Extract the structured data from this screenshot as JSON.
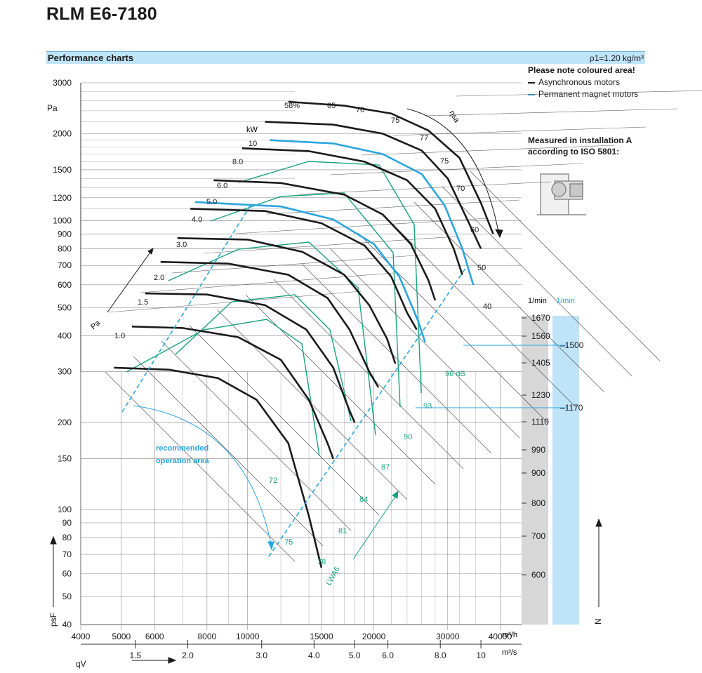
{
  "title": "RLM E6-7180",
  "section_title": "Performance charts",
  "density_label": "ρ1=1.20 kg/m³",
  "notes": {
    "coloured": "Please note coloured area!",
    "async": "Asynchronous motors",
    "pm": "Permanent magnet motors",
    "measured_1": "Measured in installation A",
    "measured_2": "according to ISO 5801:"
  },
  "colors": {
    "async": "#1a1a1a",
    "pm": "#2aa5e0",
    "efficiency": "#19a37d",
    "band": "#bfe3f7",
    "speed_bar": "#d7d7d7"
  },
  "recommended_label_1": "recommended",
  "recommended_label_2": "operation area",
  "chart_data": {
    "type": "line",
    "y_axis": {
      "label": "psF",
      "unit": "Pa",
      "scale": "log",
      "range": [
        40,
        3000
      ],
      "ticks": [
        "40",
        "50",
        "60",
        "70",
        "80",
        "90",
        "100",
        "150",
        "200",
        "300",
        "400",
        "500",
        "600",
        "700",
        "800",
        "900",
        "1000",
        "1200",
        "1500",
        "2000",
        "3000"
      ]
    },
    "x_axis_m3h": {
      "scale": "log",
      "unit": "m³/h",
      "range": [
        4000,
        45000
      ],
      "ticks": [
        "4000",
        "5000",
        "6000",
        "8000",
        "10000",
        "15000",
        "20000",
        "30000",
        "40000"
      ]
    },
    "x_axis_m3s": {
      "label": "qV",
      "unit": "m³/s",
      "ticks": [
        "1.5",
        "2.0",
        "3.0",
        "4.0",
        "5.0",
        "6.0",
        "8.0",
        "10"
      ]
    },
    "power_kw": {
      "unit": "kW",
      "values": [
        "10",
        "8.0",
        "6.0",
        "5.0",
        "4.0",
        "3.0",
        "2.0",
        "1.5",
        "1.0"
      ]
    },
    "efficiency_pct": {
      "label": "ηsa",
      "values": [
        "58%",
        "65",
        "70",
        "75",
        "77",
        "75",
        "70",
        "60",
        "50",
        "40"
      ]
    },
    "sound_dB": [
      "96 dB",
      "93",
      "90",
      "87",
      "84",
      "81",
      "78",
      "75",
      "72"
    ],
    "sound_label": "LWA6",
    "pa_label": "Pa",
    "speed_async_unit": "1/min",
    "speed_async": [
      "1670",
      "1560",
      "1405",
      "1230",
      "1110",
      "990",
      "900",
      "800",
      "700",
      "600"
    ],
    "speed_pm_unit": "1/min",
    "speed_pm": [
      "1500",
      "1170"
    ],
    "n_label": "N",
    "async_curves": [
      {
        "rpm": 1670,
        "points": [
          [
            12500,
            2580
          ],
          [
            17000,
            2500
          ],
          [
            22000,
            2350
          ],
          [
            27000,
            2050
          ],
          [
            32000,
            1650
          ],
          [
            36000,
            1150
          ],
          [
            38500,
            900
          ]
        ]
      },
      {
        "rpm": 1560,
        "points": [
          [
            11000,
            2200
          ],
          [
            16000,
            2150
          ],
          [
            21000,
            2000
          ],
          [
            26000,
            1750
          ],
          [
            30000,
            1400
          ],
          [
            33500,
            1000
          ],
          [
            36000,
            800
          ]
        ]
      },
      {
        "rpm": 1405,
        "points": [
          [
            9700,
            1780
          ],
          [
            14000,
            1740
          ],
          [
            19000,
            1600
          ],
          [
            24000,
            1380
          ],
          [
            28000,
            1100
          ],
          [
            31000,
            800
          ],
          [
            32500,
            650
          ]
        ]
      },
      {
        "rpm": 1230,
        "points": [
          [
            8300,
            1380
          ],
          [
            12000,
            1350
          ],
          [
            17000,
            1230
          ],
          [
            21000,
            1050
          ],
          [
            24500,
            830
          ],
          [
            27000,
            620
          ],
          [
            28000,
            530
          ]
        ]
      },
      {
        "rpm": 1110,
        "points": [
          [
            7300,
            1100
          ],
          [
            11000,
            1080
          ],
          [
            15000,
            980
          ],
          [
            19000,
            820
          ],
          [
            22000,
            640
          ],
          [
            24000,
            480
          ],
          [
            25300,
            420
          ]
        ]
      },
      {
        "rpm": 990,
        "points": [
          [
            6800,
            870
          ],
          [
            10000,
            860
          ],
          [
            13500,
            780
          ],
          [
            17000,
            650
          ],
          [
            19500,
            510
          ],
          [
            21500,
            390
          ],
          [
            22500,
            320
          ]
        ]
      },
      {
        "rpm": 900,
        "points": [
          [
            6200,
            720
          ],
          [
            9000,
            710
          ],
          [
            12500,
            650
          ],
          [
            15500,
            540
          ],
          [
            17500,
            420
          ],
          [
            19500,
            300
          ],
          [
            20500,
            265
          ]
        ]
      },
      {
        "rpm": 800,
        "points": [
          [
            5700,
            560
          ],
          [
            8000,
            555
          ],
          [
            11000,
            510
          ],
          [
            13800,
            420
          ],
          [
            16000,
            310
          ],
          [
            17500,
            220
          ],
          [
            18000,
            200
          ]
        ]
      },
      {
        "rpm": 700,
        "points": [
          [
            5300,
            430
          ],
          [
            7000,
            425
          ],
          [
            9500,
            395
          ],
          [
            12000,
            330
          ],
          [
            14000,
            240
          ],
          [
            15500,
            170
          ],
          [
            16000,
            150
          ]
        ]
      },
      {
        "rpm": 600,
        "points": [
          [
            4800,
            310
          ],
          [
            6500,
            305
          ],
          [
            8500,
            285
          ],
          [
            10500,
            240
          ],
          [
            12500,
            170
          ],
          [
            14000,
            95
          ],
          [
            15000,
            63
          ]
        ]
      }
    ],
    "pm_curves": [
      {
        "rpm": 1500,
        "points": [
          [
            11300,
            1900
          ],
          [
            16000,
            1850
          ],
          [
            21000,
            1700
          ],
          [
            26000,
            1450
          ],
          [
            29500,
            1130
          ],
          [
            32500,
            800
          ],
          [
            34500,
            600
          ]
        ]
      },
      {
        "rpm": 1170,
        "points": [
          [
            7500,
            1160
          ],
          [
            12000,
            1120
          ],
          [
            16000,
            1010
          ],
          [
            20000,
            830
          ],
          [
            23000,
            640
          ],
          [
            25500,
            450
          ],
          [
            26500,
            380
          ]
        ]
      }
    ]
  }
}
